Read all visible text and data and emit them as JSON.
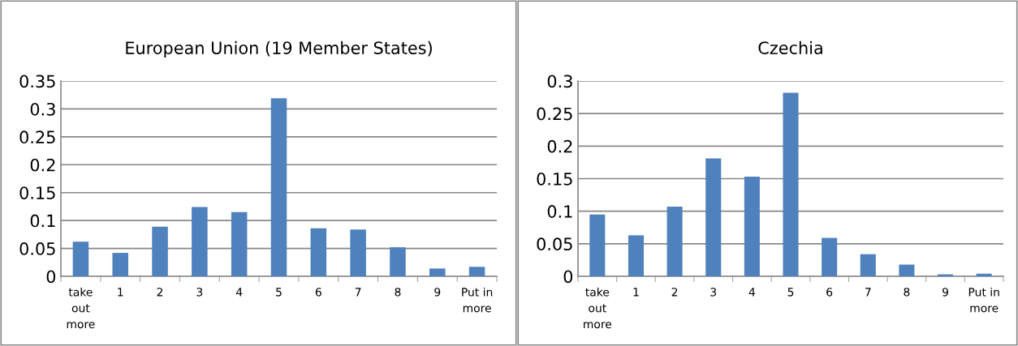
{
  "chart_data": [
    {
      "type": "bar",
      "title": "European Union (19 Member States)",
      "categories": [
        "take out more",
        "1",
        "2",
        "3",
        "4",
        "5",
        "6",
        "7",
        "8",
        "9",
        "Put in more"
      ],
      "values": [
        0.062,
        0.042,
        0.089,
        0.124,
        0.115,
        0.319,
        0.086,
        0.084,
        0.052,
        0.014,
        0.017
      ],
      "color": "#4f81bd",
      "ylim": [
        0,
        0.35
      ],
      "yticks": [
        {
          "value": 0,
          "label": "0"
        },
        0.05,
        {
          "value": 0.1,
          "label": "0.1"
        },
        0.15,
        {
          "value": 0.2,
          "label": "0.2"
        },
        0.25,
        {
          "value": 0.3,
          "label": "0.3"
        },
        0.35
      ],
      "grid": "y"
    },
    {
      "type": "bar",
      "title": "Czechia",
      "categories": [
        "take out more",
        "1",
        "2",
        "3",
        "4",
        "5",
        "6",
        "7",
        "8",
        "9",
        "Put in more"
      ],
      "values": [
        0.095,
        0.063,
        0.107,
        0.181,
        0.153,
        0.282,
        0.059,
        0.034,
        0.018,
        0.003,
        0.004
      ],
      "color": "#4f81bd",
      "ylim": [
        0,
        0.3
      ],
      "yticks": [
        {
          "value": 0,
          "label": "0"
        },
        0.05,
        {
          "value": 0.1,
          "label": "0.1"
        },
        0.15,
        {
          "value": 0.2,
          "label": "0.2"
        },
        0.25,
        {
          "value": 0.3,
          "label": "0.3"
        }
      ],
      "grid": "y"
    }
  ]
}
